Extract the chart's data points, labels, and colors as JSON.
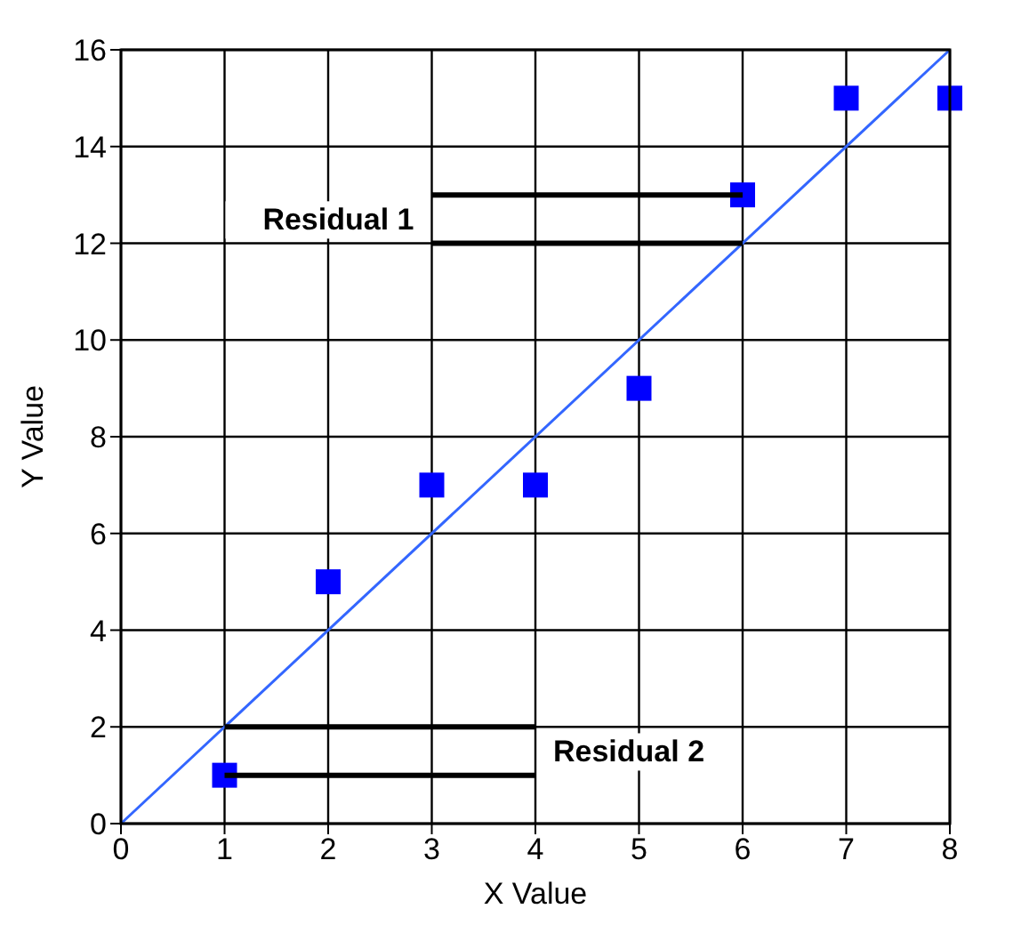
{
  "chart_data": {
    "type": "scatter",
    "xlabel": "X Value",
    "ylabel": "Y Value",
    "x": [
      1,
      2,
      3,
      4,
      5,
      6,
      7,
      8
    ],
    "series": [
      {
        "color": "#0000ff",
        "values": [
          1,
          5,
          7,
          7,
          9,
          13,
          15,
          15
        ],
        "marker": "square"
      },
      {
        "type": "line",
        "color": "#3366ff",
        "x": [
          0,
          8
        ],
        "values": [
          0,
          16
        ],
        "marker": "none"
      }
    ],
    "annotations": [
      {
        "text": "Residual 1",
        "x": 6,
        "y": 13
      },
      {
        "text": "Residual 2",
        "x": 1,
        "y": 1
      }
    ],
    "xlim": [
      0,
      8
    ],
    "xticks": [
      0,
      1,
      2,
      3,
      4,
      5,
      6,
      7,
      8
    ],
    "ylim": [
      0,
      16
    ],
    "yticks": [
      0,
      2,
      4,
      6,
      8,
      10,
      12,
      14,
      16
    ],
    "grid": true
  }
}
